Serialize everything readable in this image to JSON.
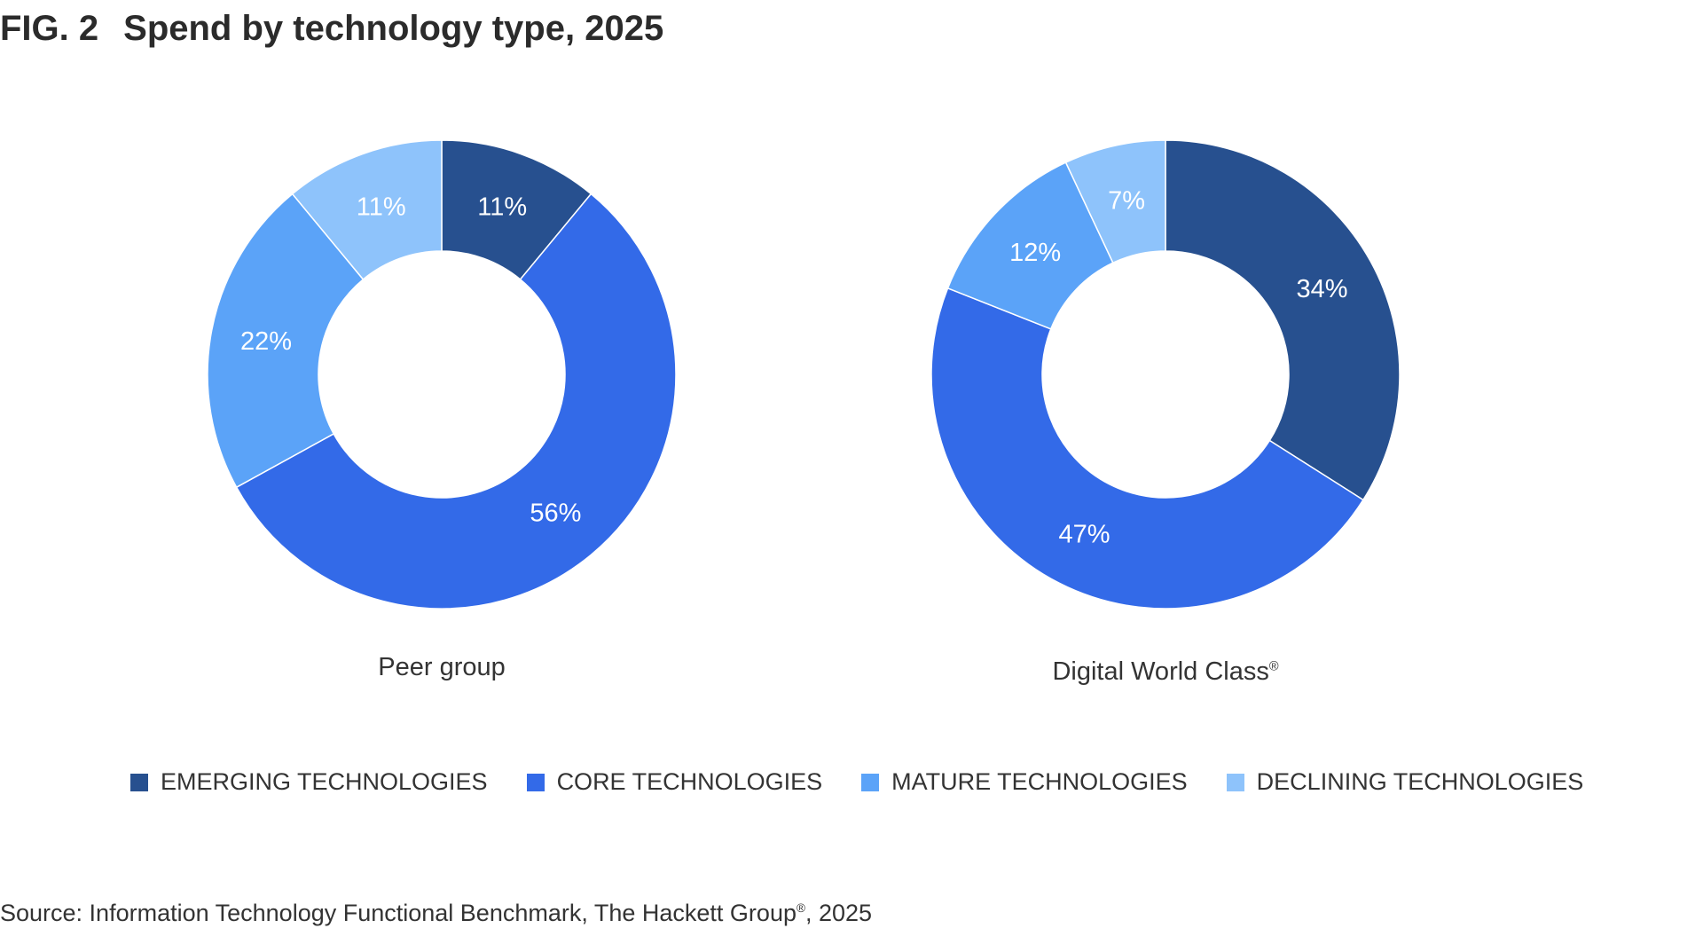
{
  "chart_data": {
    "type": "pie",
    "title_prefix": "FIG. 2",
    "title": "Spend by technology type, 2025",
    "categories": [
      "EMERGING TECHNOLOGIES",
      "CORE TECHNOLOGIES",
      "MATURE TECHNOLOGIES",
      "DECLINING TECHNOLOGIES"
    ],
    "colors": [
      "#27508f",
      "#336ae8",
      "#5ba3f8",
      "#8ec3fb"
    ],
    "charts": [
      {
        "name": "Peer group",
        "values": [
          11,
          56,
          22,
          11
        ],
        "labels": [
          "11%",
          "56%",
          "22%",
          "11%"
        ]
      },
      {
        "name": "Digital World Class",
        "name_mark": "®",
        "values": [
          34,
          47,
          12,
          7
        ],
        "labels": [
          "34%",
          "47%",
          "12%",
          "7%"
        ]
      }
    ],
    "legend_position": "bottom",
    "source": "Source: Information Technology Functional Benchmark, The Hackett Group",
    "source_mark": "®",
    "source_year": ", 2025"
  }
}
